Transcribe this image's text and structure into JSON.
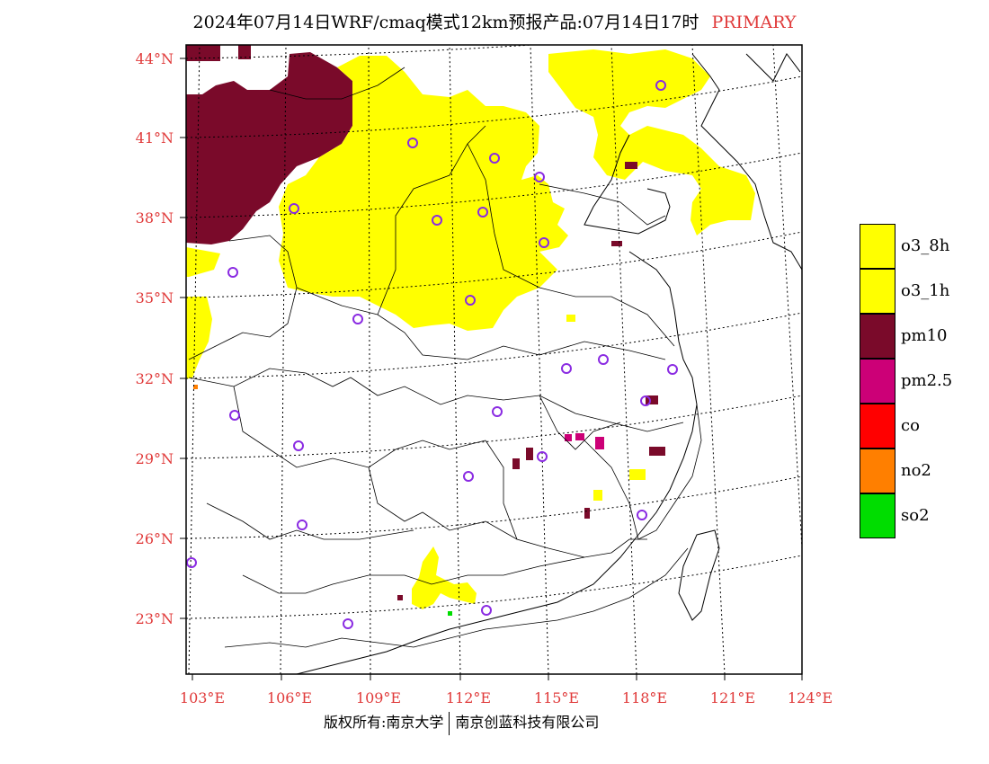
{
  "title": {
    "text": "2024年07月14日WRF/cmaq模式12km预报产品:07月14日17时",
    "tag": "PRIMARY"
  },
  "axes": {
    "lat_labels": [
      "44°N",
      "41°N",
      "38°N",
      "35°N",
      "32°N",
      "29°N",
      "26°N",
      "23°N"
    ],
    "lon_labels": [
      "103°E",
      "106°E",
      "109°E",
      "112°E",
      "115°E",
      "118°E",
      "121°E",
      "124°E"
    ]
  },
  "legend": {
    "items": [
      {
        "label": "o3_8h",
        "color": "#ffff00"
      },
      {
        "label": "o3_1h",
        "color": "#ffff00"
      },
      {
        "label": "pm10",
        "color": "#7a0a2a"
      },
      {
        "label": "pm2.5",
        "color": "#cc0077"
      },
      {
        "label": "co",
        "color": "#ff0000"
      },
      {
        "label": "no2",
        "color": "#ff7f00"
      },
      {
        "label": "so2",
        "color": "#00dd00"
      }
    ]
  },
  "colors": {
    "label_red": "#e03a3a",
    "station_circle": "#8a2be2"
  },
  "footer": {
    "left": "版权所有:南京大学",
    "right": "南京创蓝科技有限公司"
  }
}
